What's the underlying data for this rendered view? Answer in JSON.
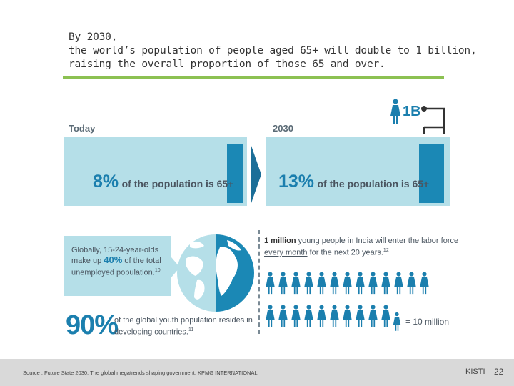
{
  "header": {
    "line1": "By 2030,",
    "line2": "the world’s population of people aged 65+ will double to 1 billion,",
    "line3": "raising the overall proportion of those 65 and over."
  },
  "today": {
    "label": "Today",
    "percent": "8%",
    "text": "of the population is 65+",
    "share": 0.08
  },
  "future": {
    "label": "2030",
    "percent": "13%",
    "text": "of the population is 65+",
    "share": 0.13
  },
  "one_billion": "1B",
  "globe_note": {
    "line1": "Globally, 15-24-year-olds",
    "line2_pre": "make up ",
    "line2_pct": "40%",
    "line2_post": " of the total",
    "line3": "unemployed population.",
    "ref": "10"
  },
  "youth": {
    "percent": "90%",
    "line1": "of the global youth population resides in",
    "line2": "developing countries.",
    "ref": "11"
  },
  "india": {
    "bold": "1 million",
    "line1_rest": " young people in India will enter the labor force",
    "line2_underlined": "every month",
    "line2_rest": " for the next 20 years.",
    "ref": "12",
    "row_count": 13,
    "rows": 2
  },
  "legend": {
    "text": "= 10 million"
  },
  "footer": {
    "source": "Source : Future State 2030: The global megatrends shaping government, KPMG INTERNATIONAL",
    "org": "KISTI",
    "page": "22"
  },
  "colors": {
    "accent": "#1b7fae",
    "panel": "#b5dfe8",
    "bar": "#1b88b5",
    "rule": "#8cc152",
    "person": "#1b7fae"
  }
}
